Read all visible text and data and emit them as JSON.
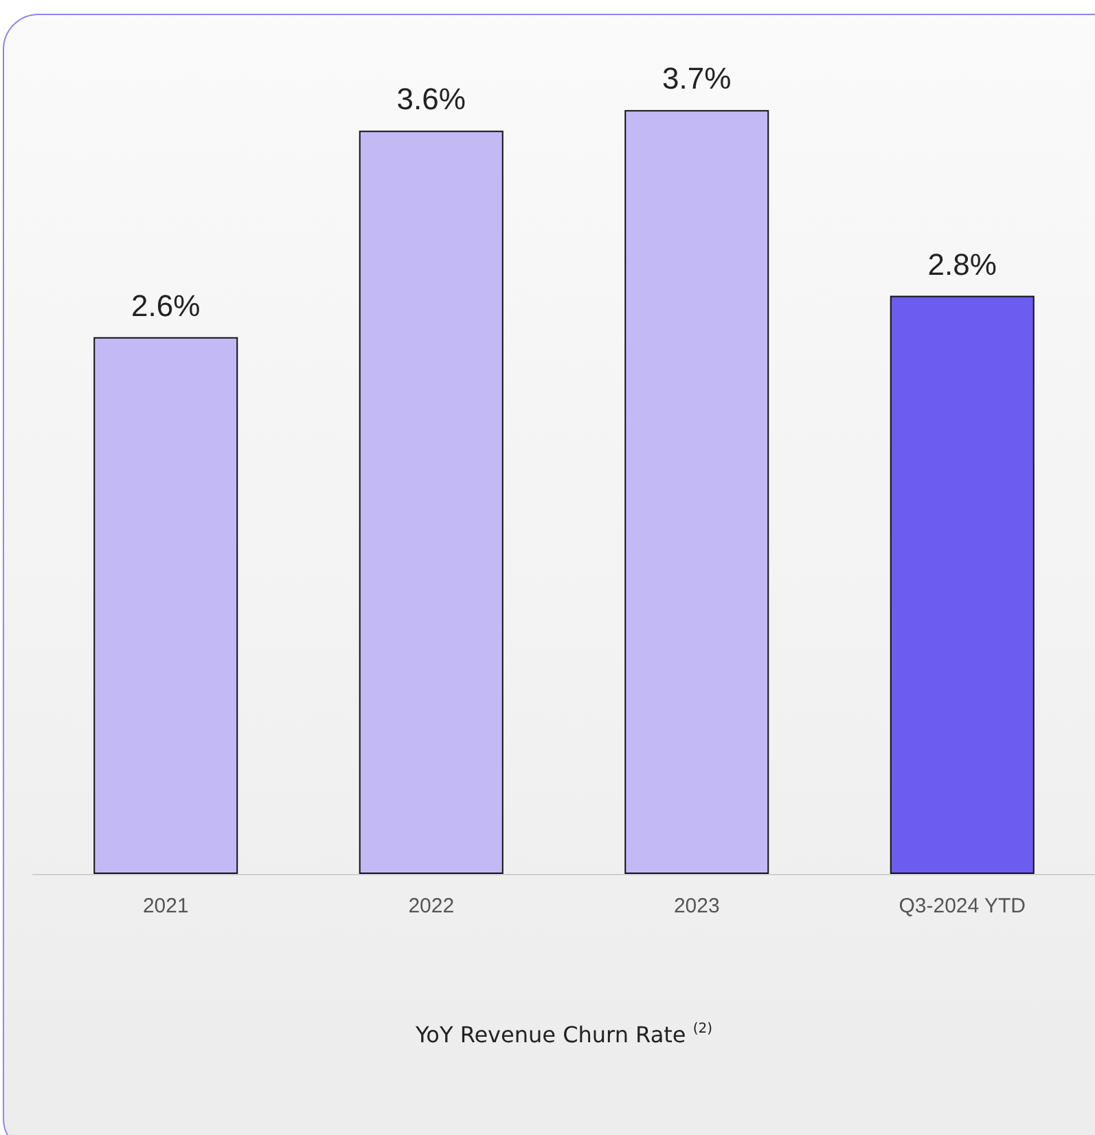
{
  "chart_data": {
    "type": "bar",
    "xlabel": "YoY Revenue Churn Rate $^{(2)}$",
    "categories": [
      "2021",
      "2022",
      "2023",
      "Q3-2024 YTD"
    ],
    "values": [
      2.6,
      3.6,
      3.7,
      2.8
    ],
    "value_labels": [
      "2.6%",
      "3.6%",
      "3.7%",
      "2.8%"
    ],
    "colors": [
      "#c3baf5",
      "#c3baf5",
      "#c3baf5",
      "#6c5cef"
    ],
    "tick_labels": "x"
  }
}
